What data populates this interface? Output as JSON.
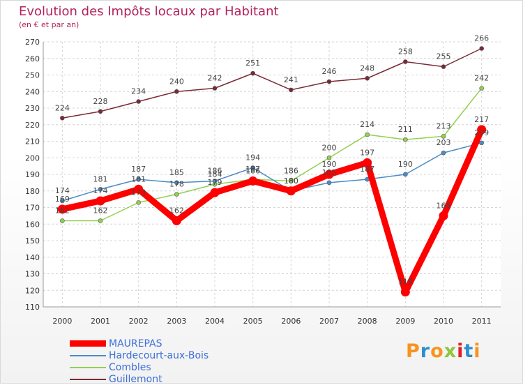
{
  "title": "Evolution des Impôts locaux par Habitant",
  "subtitle": "(en € et par an)",
  "logo_text": "Proxiti",
  "chart_data": {
    "type": "line",
    "x": [
      "2000",
      "2001",
      "2002",
      "2003",
      "2004",
      "2005",
      "2006",
      "2007",
      "2008",
      "2009",
      "2010",
      "2011"
    ],
    "ylim": [
      110,
      270
    ],
    "y_ticks": [
      110,
      120,
      130,
      140,
      150,
      160,
      170,
      180,
      190,
      200,
      210,
      220,
      230,
      240,
      250,
      260,
      270
    ],
    "grid": true,
    "legend_position": "bottom-left",
    "series": [
      {
        "name": "Guillemont",
        "color": "#7b2a35",
        "values": [
          224,
          228,
          234,
          240,
          242,
          251,
          241,
          246,
          248,
          258,
          255,
          266
        ]
      },
      {
        "name": "Combles",
        "color": "#92d050",
        "values": [
          162,
          162,
          173,
          178,
          184,
          187,
          186,
          200,
          214,
          211,
          213,
          242
        ]
      },
      {
        "name": "Hardecourt-aux-Bois",
        "color": "#4a8cc7",
        "values": [
          174,
          181,
          187,
          185,
          186,
          194,
          180,
          185,
          187,
          190,
          203,
          209
        ]
      },
      {
        "name": "MAUREPAS",
        "color": "#ff0000",
        "values": [
          169,
          174,
          181,
          162,
          179,
          186,
          180,
          190,
          197,
          119,
          165,
          217
        ]
      }
    ],
    "legend": [
      "MAUREPAS",
      "Hardecourt-aux-Bois",
      "Combles",
      "Guillemont"
    ]
  }
}
